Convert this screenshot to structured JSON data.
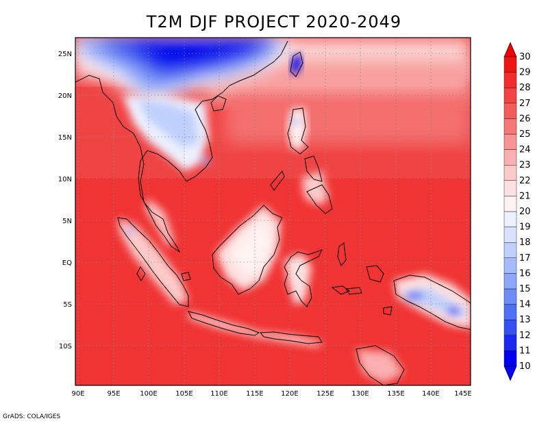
{
  "title": "T2M DJF PROJECT 2020-2049",
  "credit": "GrADS: COLA/IGES",
  "map": {
    "lon_range": [
      90,
      146
    ],
    "lat_range": [
      -15,
      27
    ],
    "lon_ticks": [
      "90E",
      "95E",
      "100E",
      "105E",
      "110E",
      "115E",
      "120E",
      "125E",
      "130E",
      "135E",
      "140E",
      "145E"
    ],
    "lat_ticks": [
      "25N",
      "20N",
      "15N",
      "10N",
      "5N",
      "EQ",
      "5S",
      "10S"
    ],
    "grid": true
  },
  "colorbar": {
    "labels": [
      "10",
      "11",
      "12",
      "13",
      "14",
      "15",
      "16",
      "17",
      "18",
      "19",
      "20",
      "21",
      "22",
      "23",
      "24",
      "25",
      "26",
      "27",
      "28",
      "29",
      "30"
    ],
    "colors": [
      "#0000ee",
      "#1a28f0",
      "#3450f2",
      "#5070f4",
      "#6e8cf6",
      "#8ca6f8",
      "#a6bcfa",
      "#c0d0fc",
      "#d8e2fd",
      "#ecf0fe",
      "#fff2f2",
      "#fde0e0",
      "#fccaca",
      "#fab0b0",
      "#f89494",
      "#f67878",
      "#f45c5c",
      "#f24444",
      "#f02c2c",
      "#ee1414"
    ]
  },
  "colors": {
    "ocean": "#f23a3a",
    "coast": "#000000",
    "cold": "#0000ee"
  }
}
